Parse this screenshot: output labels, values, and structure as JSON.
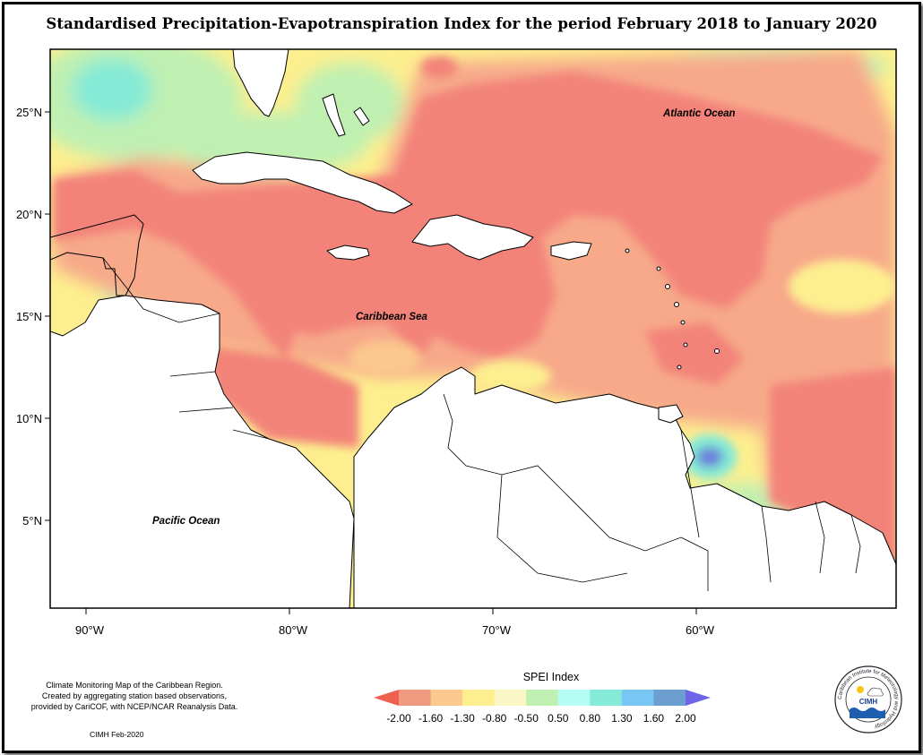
{
  "title": "Standardised Precipitation-Evapotranspiration Index for the period February 2018 to January 2020",
  "map": {
    "ocean_labels": [
      {
        "text": "Atlantic Ocean"
      },
      {
        "text": "Caribbean Sea"
      },
      {
        "text": "Pacific Ocean"
      }
    ],
    "lat_ticks": [
      "25°N",
      "20°N",
      "15°N",
      "10°N",
      "5°N"
    ],
    "lon_ticks": [
      "90°W",
      "80°W",
      "70°W",
      "60°W"
    ],
    "longitude_values": [
      -90,
      -80,
      -70,
      -60
    ],
    "latitude_values": [
      25,
      20,
      15,
      10,
      5
    ],
    "land_color": "#ffffff",
    "coastline_color": "#000000"
  },
  "legend": {
    "title": "SPEI Index",
    "labels": [
      "-2.00",
      "-1.60",
      "-1.30",
      "-0.80",
      "-0.50",
      "0.50",
      "0.80",
      "1.30",
      "1.60",
      "2.00"
    ],
    "colors": [
      "#f0604f",
      "#f09a80",
      "#fbc88e",
      "#fdef8f",
      "#fbf6c6",
      "#bff0b2",
      "#b5fcf5",
      "#85ead6",
      "#78c6f4",
      "#6c9ed0",
      "#6f63e8"
    ]
  },
  "credit": {
    "line1": "Climate Monitoring Map of the Caribbean Region.",
    "line2": "Created by aggregating station based observations,",
    "line3": "provided by CariCOF, with NCEP/NCAR Reanalysis Data.",
    "date": "CIMH Feb-2020"
  },
  "logo": {
    "center_text": "CIMH",
    "ring_text": "Caribbean Institute for Meteorology and Hydrology"
  }
}
